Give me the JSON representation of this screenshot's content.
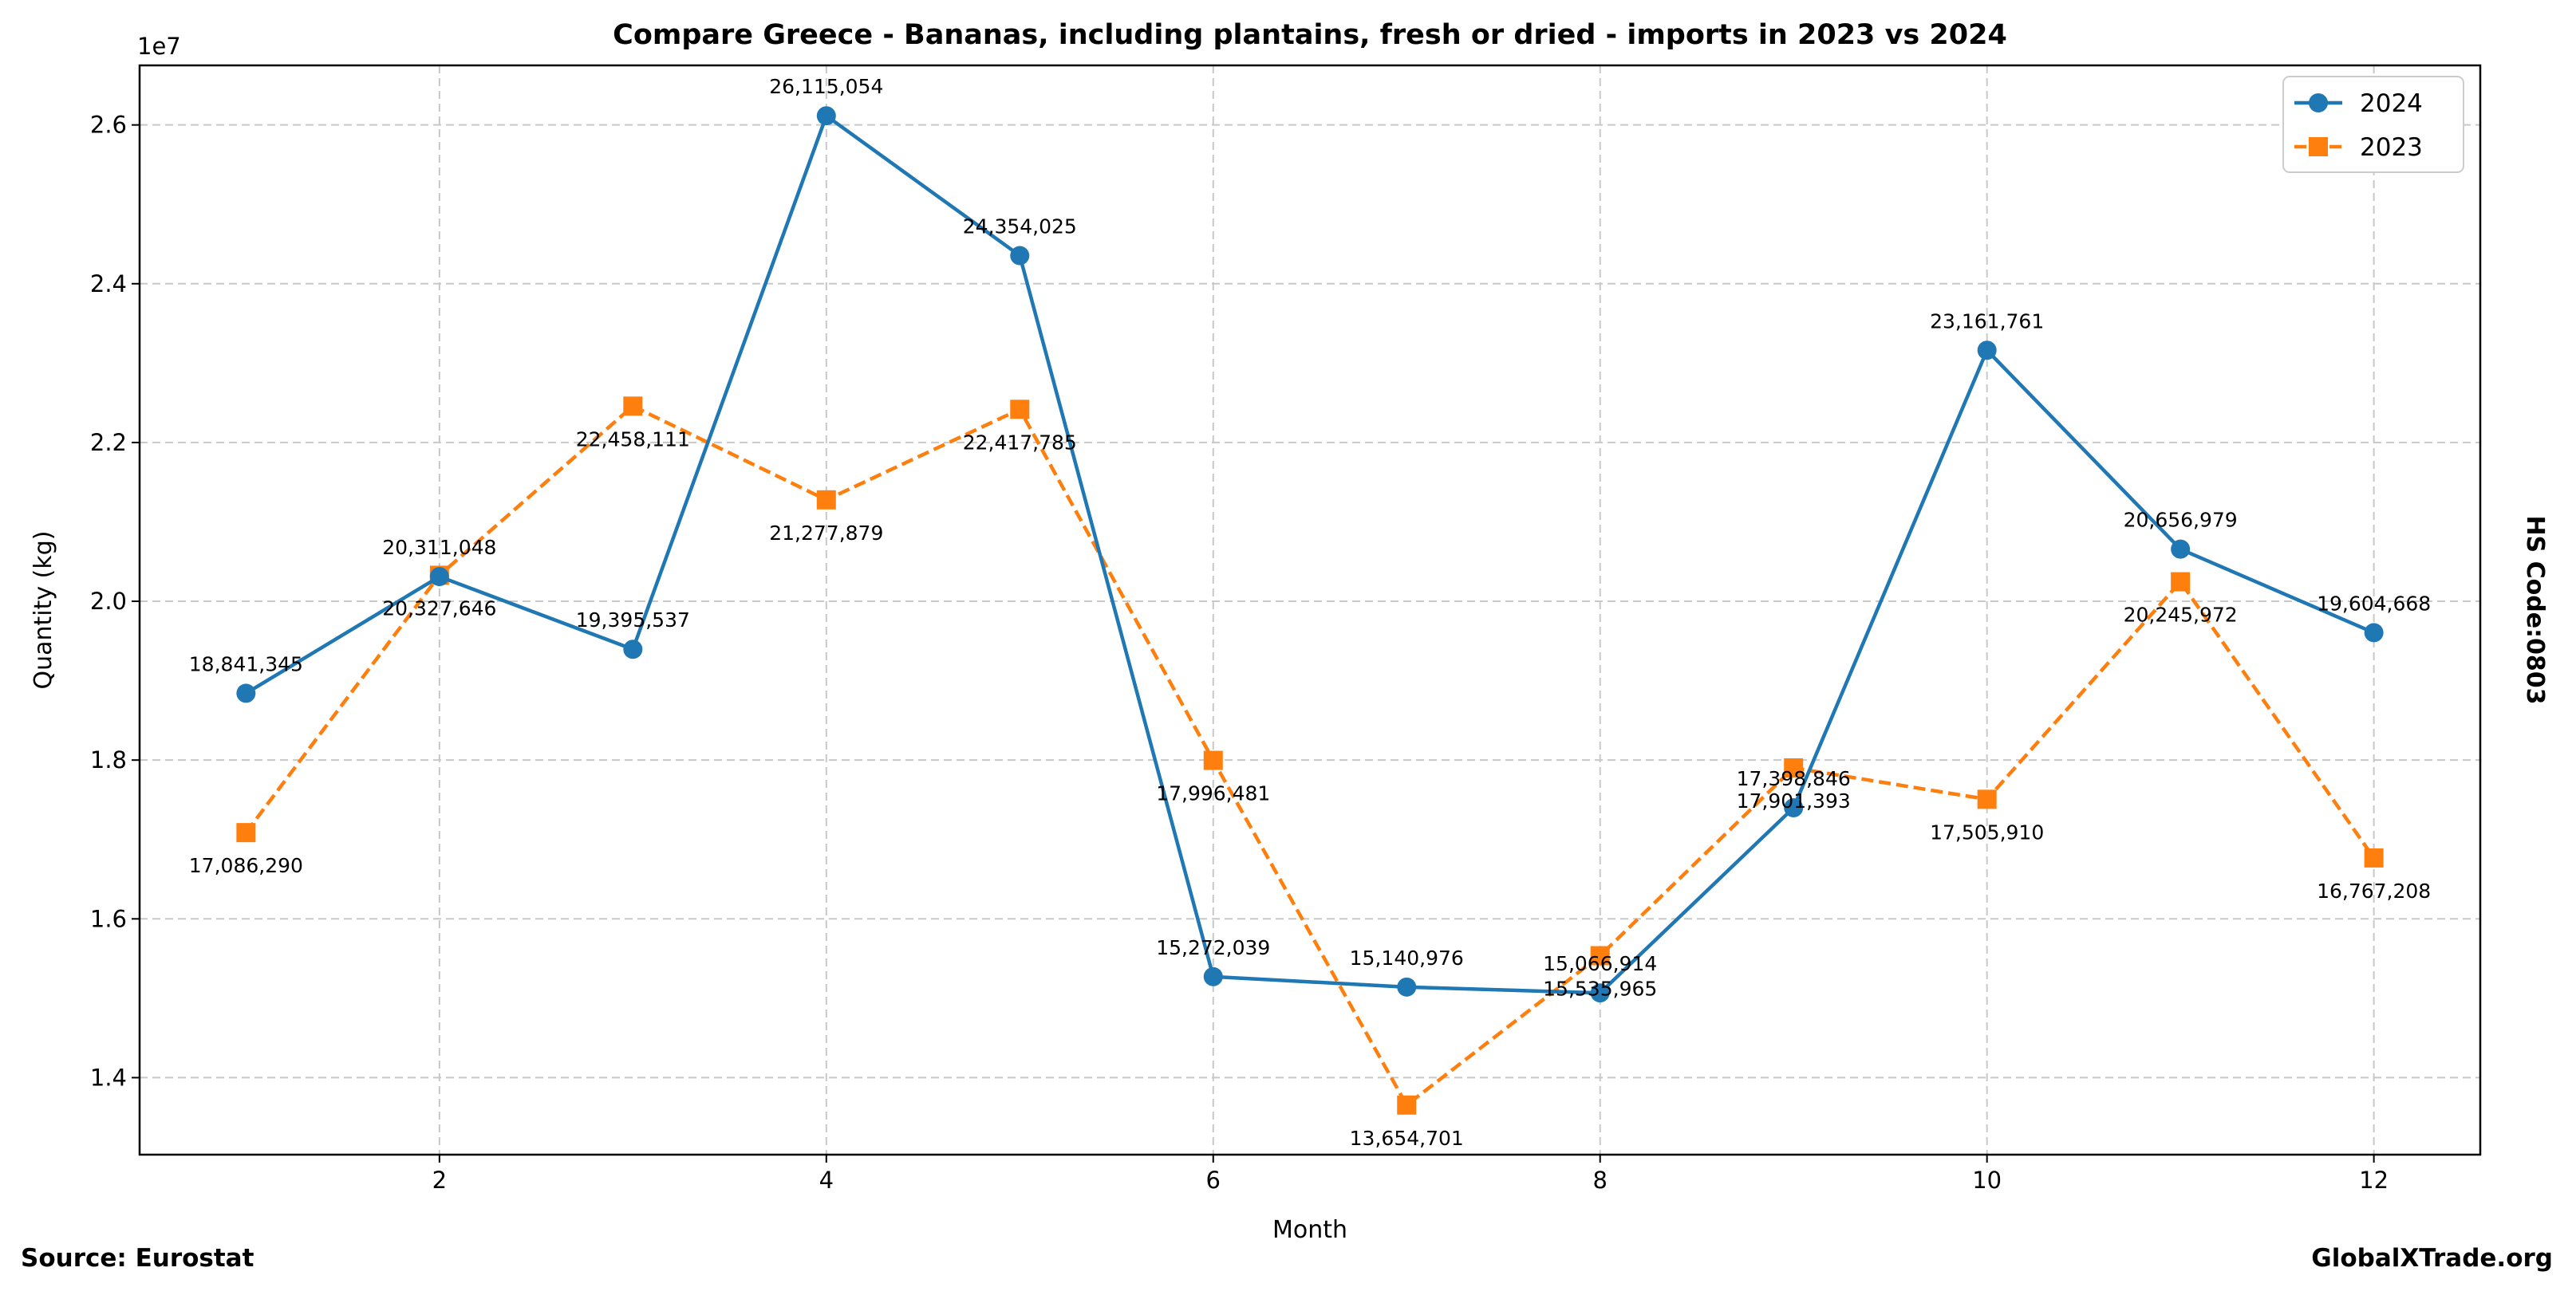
{
  "chart_data": {
    "type": "line",
    "title": "Compare Greece - Bananas, including plantains, fresh or dried - imports in 2023 vs 2024",
    "xlabel": "Month",
    "ylabel": "Quantity (kg)",
    "y_offset_label": "1e7",
    "x": [
      1,
      2,
      3,
      4,
      5,
      6,
      7,
      8,
      9,
      10,
      11,
      12
    ],
    "xticks": [
      2,
      4,
      6,
      8,
      10,
      12
    ],
    "yticks": [
      1.4,
      1.6,
      1.8,
      2.0,
      2.2,
      2.4,
      2.6
    ],
    "ytick_labels": [
      "1.4",
      "1.6",
      "1.8",
      "2.0",
      "2.2",
      "2.4",
      "2.6"
    ],
    "xlim": [
      0.45,
      12.55
    ],
    "ylim": [
      13030000,
      26750000
    ],
    "grid": true,
    "legend_position": "top-right",
    "series": [
      {
        "name": "2024",
        "color": "#1f77b4",
        "marker": "circle",
        "linestyle": "solid",
        "label_side": "above",
        "values": [
          18841345,
          20311048,
          19395537,
          26115054,
          24354025,
          15272039,
          15140976,
          15066914,
          17398846,
          23161761,
          20656979,
          19604668
        ]
      },
      {
        "name": "2023",
        "color": "#ff7f0e",
        "marker": "square",
        "linestyle": "dashed",
        "label_side": "below",
        "values": [
          17086290,
          20327646,
          22458111,
          21277879,
          22417785,
          17996481,
          13654701,
          15535965,
          17901393,
          17505910,
          20245972,
          16767208
        ]
      }
    ]
  },
  "footer": {
    "source": "Source: Eurostat",
    "brand": "GlobalXTrade.org",
    "hs_code": "HS Code:0803"
  }
}
